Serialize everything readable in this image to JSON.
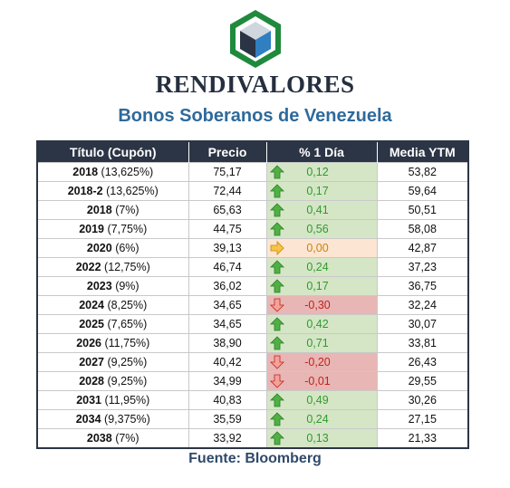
{
  "brand": "RENDIVALORES",
  "subtitle": "Bonos Soberanos de Venezuela",
  "source": "Fuente: Bloomberg",
  "colors": {
    "up": "#2f9a2f",
    "down": "#c0231c",
    "flat": "#c8850a",
    "header": "#2c3545"
  },
  "table": {
    "headers": [
      "Título (Cupón)",
      "Precio",
      "% 1 Día",
      "Media YTM"
    ],
    "rows": [
      {
        "year": "2018",
        "coupon": "(13,625%)",
        "price": "75,17",
        "change": "0,12",
        "dir": "up",
        "ytm": "53,82"
      },
      {
        "year": "2018-2",
        "coupon": "(13,625%)",
        "price": "72,44",
        "change": "0,17",
        "dir": "up",
        "ytm": "59,64"
      },
      {
        "year": "2018",
        "coupon": "(7%)",
        "price": "65,63",
        "change": "0,41",
        "dir": "up",
        "ytm": "50,51"
      },
      {
        "year": "2019",
        "coupon": "(7,75%)",
        "price": "44,75",
        "change": "0,56",
        "dir": "up",
        "ytm": "58,08"
      },
      {
        "year": "2020",
        "coupon": "(6%)",
        "price": "39,13",
        "change": "0,00",
        "dir": "flat",
        "ytm": "42,87"
      },
      {
        "year": "2022",
        "coupon": "(12,75%)",
        "price": "46,74",
        "change": "0,24",
        "dir": "up",
        "ytm": "37,23"
      },
      {
        "year": "2023",
        "coupon": "(9%)",
        "price": "36,02",
        "change": "0,17",
        "dir": "up",
        "ytm": "36,75"
      },
      {
        "year": "2024",
        "coupon": "(8,25%)",
        "price": "34,65",
        "change": "-0,30",
        "dir": "down",
        "ytm": "32,24"
      },
      {
        "year": "2025",
        "coupon": "(7,65%)",
        "price": "34,65",
        "change": "0,42",
        "dir": "up",
        "ytm": "30,07"
      },
      {
        "year": "2026",
        "coupon": "(11,75%)",
        "price": "38,90",
        "change": "0,71",
        "dir": "up",
        "ytm": "33,81"
      },
      {
        "year": "2027",
        "coupon": "(9,25%)",
        "price": "40,42",
        "change": "-0,20",
        "dir": "down",
        "ytm": "26,43"
      },
      {
        "year": "2028",
        "coupon": "(9,25%)",
        "price": "34,99",
        "change": "-0,01",
        "dir": "down",
        "ytm": "29,55"
      },
      {
        "year": "2031",
        "coupon": "(11,95%)",
        "price": "40,83",
        "change": "0,49",
        "dir": "up",
        "ytm": "30,26"
      },
      {
        "year": "2034",
        "coupon": "(9,375%)",
        "price": "35,59",
        "change": "0,24",
        "dir": "up",
        "ytm": "27,15"
      },
      {
        "year": "2038",
        "coupon": "(7%)",
        "price": "33,92",
        "change": "0,13",
        "dir": "up",
        "ytm": "21,33"
      }
    ]
  }
}
